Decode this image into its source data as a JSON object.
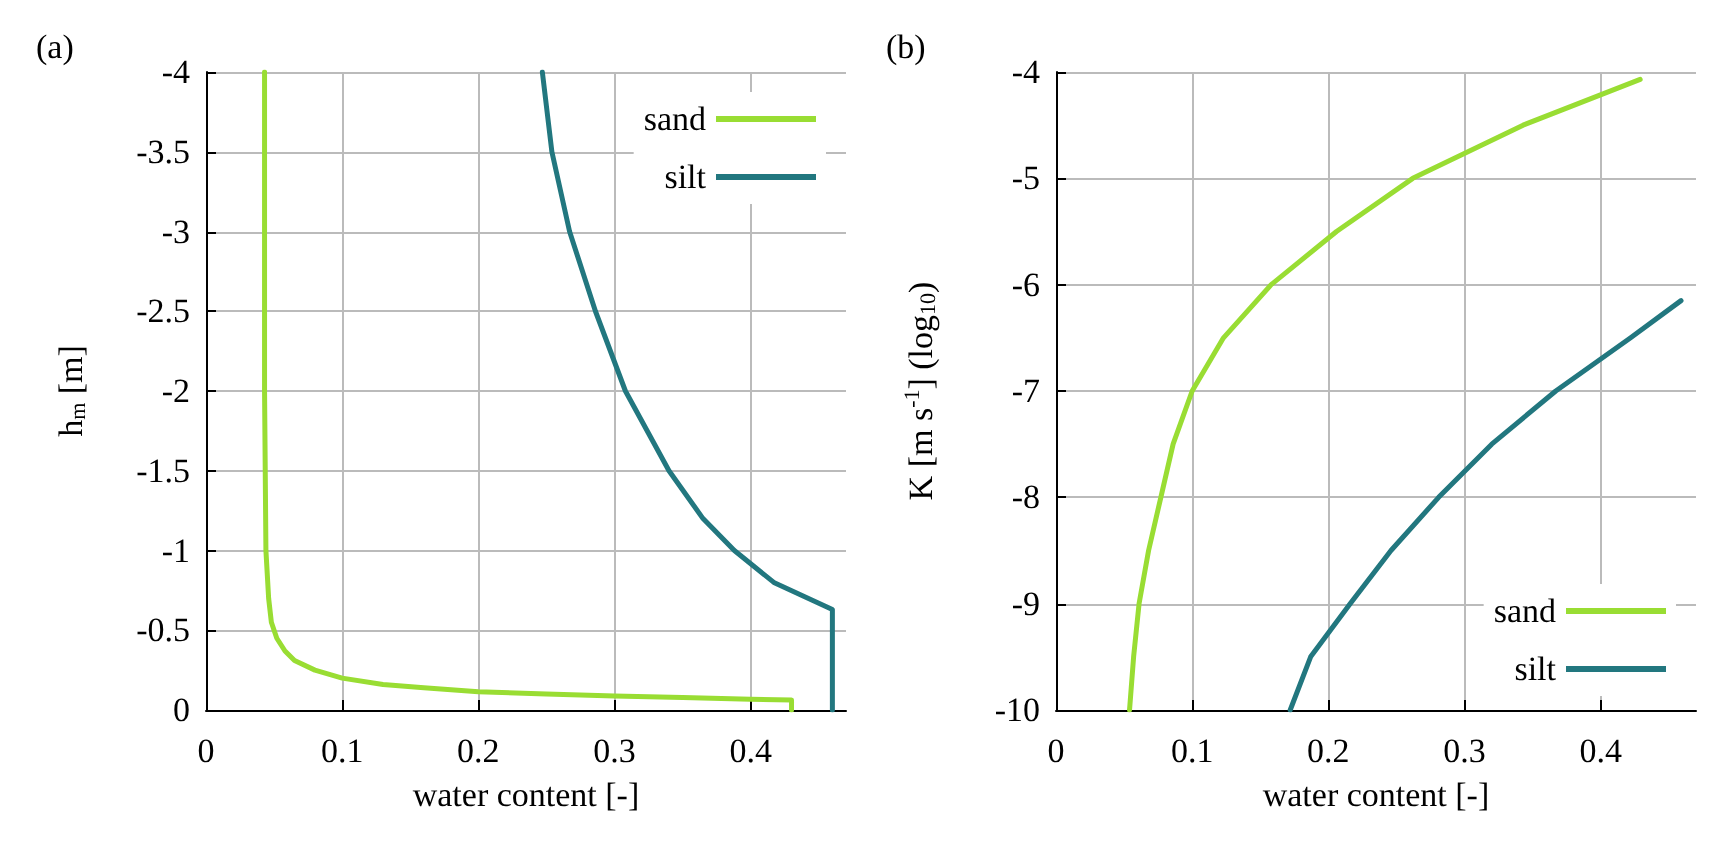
{
  "chart_data": [
    {
      "type": "line",
      "title": "(a)",
      "xlabel": "water content [-]",
      "ylabel": "h$_{m}$ [m]",
      "xlim": [
        0,
        0.47
      ],
      "xticks": [
        0,
        0.1,
        0.2,
        0.3,
        0.4
      ],
      "ylim": [
        0,
        -4
      ],
      "yticks": [
        0,
        -0.5,
        -1,
        -1.5,
        -2,
        -2.5,
        -3,
        -3.5,
        -4
      ],
      "grid": true,
      "legend": "top right",
      "marker": "none",
      "line_style": "solid",
      "series": [
        {
          "name": "sand",
          "color": "#99dd33",
          "x": [
            0.043,
            0.043,
            0.044,
            0.046,
            0.048,
            0.052,
            0.058,
            0.065,
            0.08,
            0.1,
            0.13,
            0.16,
            0.2,
            0.25,
            0.3,
            0.35,
            0.4,
            0.43,
            0.43
          ],
          "values": [
            -4,
            -2,
            -1,
            -0.7,
            -0.55,
            -0.45,
            -0.37,
            -0.31,
            -0.25,
            -0.2,
            -0.16,
            -0.14,
            -0.115,
            -0.1,
            -0.088,
            -0.078,
            -0.068,
            -0.062,
            0
          ]
        },
        {
          "name": "silt",
          "color": "#22777f",
          "x": [
            0.247,
            0.254,
            0.267,
            0.286,
            0.308,
            0.34,
            0.365,
            0.388,
            0.417,
            0.46,
            0.46
          ],
          "values": [
            -4,
            -3.5,
            -3,
            -2.5,
            -2,
            -1.5,
            -1.2,
            -1,
            -0.8,
            -0.63,
            0
          ]
        }
      ]
    },
    {
      "type": "line",
      "title": "(b)",
      "xlabel": "water content [-]",
      "ylabel": "K [m s$^{-1}$] (log$_{10}$)",
      "xlim": [
        0,
        0.47
      ],
      "xticks": [
        0,
        0.1,
        0.2,
        0.3,
        0.4
      ],
      "ylim": [
        -10,
        -4
      ],
      "yticks": [
        -10,
        -9,
        -8,
        -7,
        -6,
        -5,
        -4
      ],
      "grid": true,
      "legend": "bottom right",
      "marker": "none",
      "line_style": "solid",
      "series": [
        {
          "name": "sand",
          "color": "#99dd33",
          "x": [
            0.054,
            0.057,
            0.061,
            0.068,
            0.077,
            0.086,
            0.1,
            0.123,
            0.158,
            0.206,
            0.262,
            0.343,
            0.429
          ],
          "values": [
            -10,
            -9.5,
            -9,
            -8.5,
            -8,
            -7.5,
            -7,
            -6.5,
            -6,
            -5.5,
            -5,
            -4.5,
            -4.07
          ]
        },
        {
          "name": "silt",
          "color": "#22777f",
          "x": [
            0.172,
            0.187,
            0.216,
            0.246,
            0.281,
            0.32,
            0.367,
            0.422,
            0.459
          ],
          "values": [
            -10,
            -9.5,
            -9,
            -8.5,
            -8,
            -7.5,
            -7,
            -6.5,
            -6.15
          ]
        }
      ]
    }
  ]
}
